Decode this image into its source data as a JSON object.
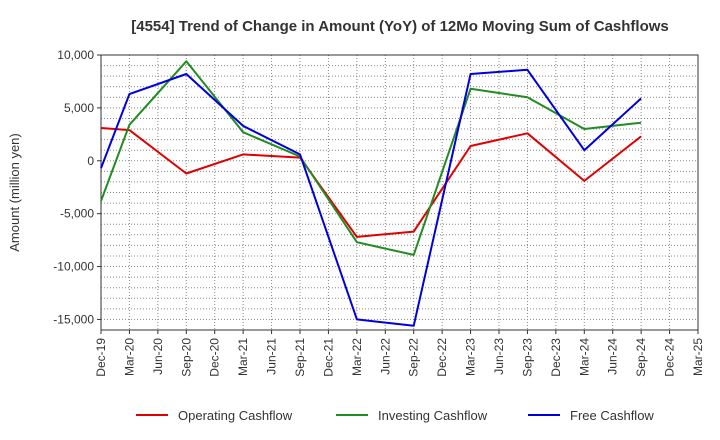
{
  "chart_data": {
    "type": "line",
    "title": "[4554]  Trend of Change in Amount (YoY) of 12Mo Moving Sum of Cashflows",
    "xlabel": "",
    "ylabel": "Amount (million yen)",
    "ylim": [
      -16000,
      10000
    ],
    "yticks": [
      10000,
      5000,
      0,
      -5000,
      -10000,
      -15000
    ],
    "ytick_labels": [
      "10,000",
      "5,000",
      "0",
      "-5,000",
      "-10,000",
      "-15,000"
    ],
    "grid": true,
    "legend_position": "bottom",
    "categories": [
      "Dec-19",
      "Mar-20",
      "Jun-20",
      "Sep-20",
      "Dec-20",
      "Mar-21",
      "Jun-21",
      "Sep-21",
      "Dec-21",
      "Mar-22",
      "Jun-22",
      "Sep-22",
      "Dec-22",
      "Mar-23",
      "Jun-23",
      "Sep-23",
      "Dec-23",
      "Mar-24",
      "Jun-24",
      "Sep-24",
      "Dec-24",
      "Mar-25"
    ],
    "series": [
      {
        "name": "Operating Cashflow",
        "color": "#e00000",
        "values": [
          3100,
          2900,
          null,
          -1200,
          null,
          600,
          null,
          300,
          null,
          -7200,
          null,
          -6700,
          null,
          1400,
          null,
          2600,
          null,
          -1900,
          null,
          2300,
          null,
          null
        ]
      },
      {
        "name": "Investing Cashflow",
        "color": "#228b22",
        "values": [
          -3800,
          3400,
          null,
          9400,
          null,
          2700,
          null,
          400,
          null,
          -7700,
          null,
          -8900,
          null,
          6800,
          null,
          6000,
          null,
          3000,
          null,
          3600,
          null,
          null
        ]
      },
      {
        "name": "Free Cashflow",
        "color": "#0000dd",
        "values": [
          -700,
          6300,
          null,
          8200,
          null,
          3300,
          null,
          600,
          null,
          -15000,
          null,
          -15600,
          null,
          8200,
          null,
          8600,
          null,
          1000,
          null,
          5900,
          null,
          null
        ]
      }
    ]
  }
}
